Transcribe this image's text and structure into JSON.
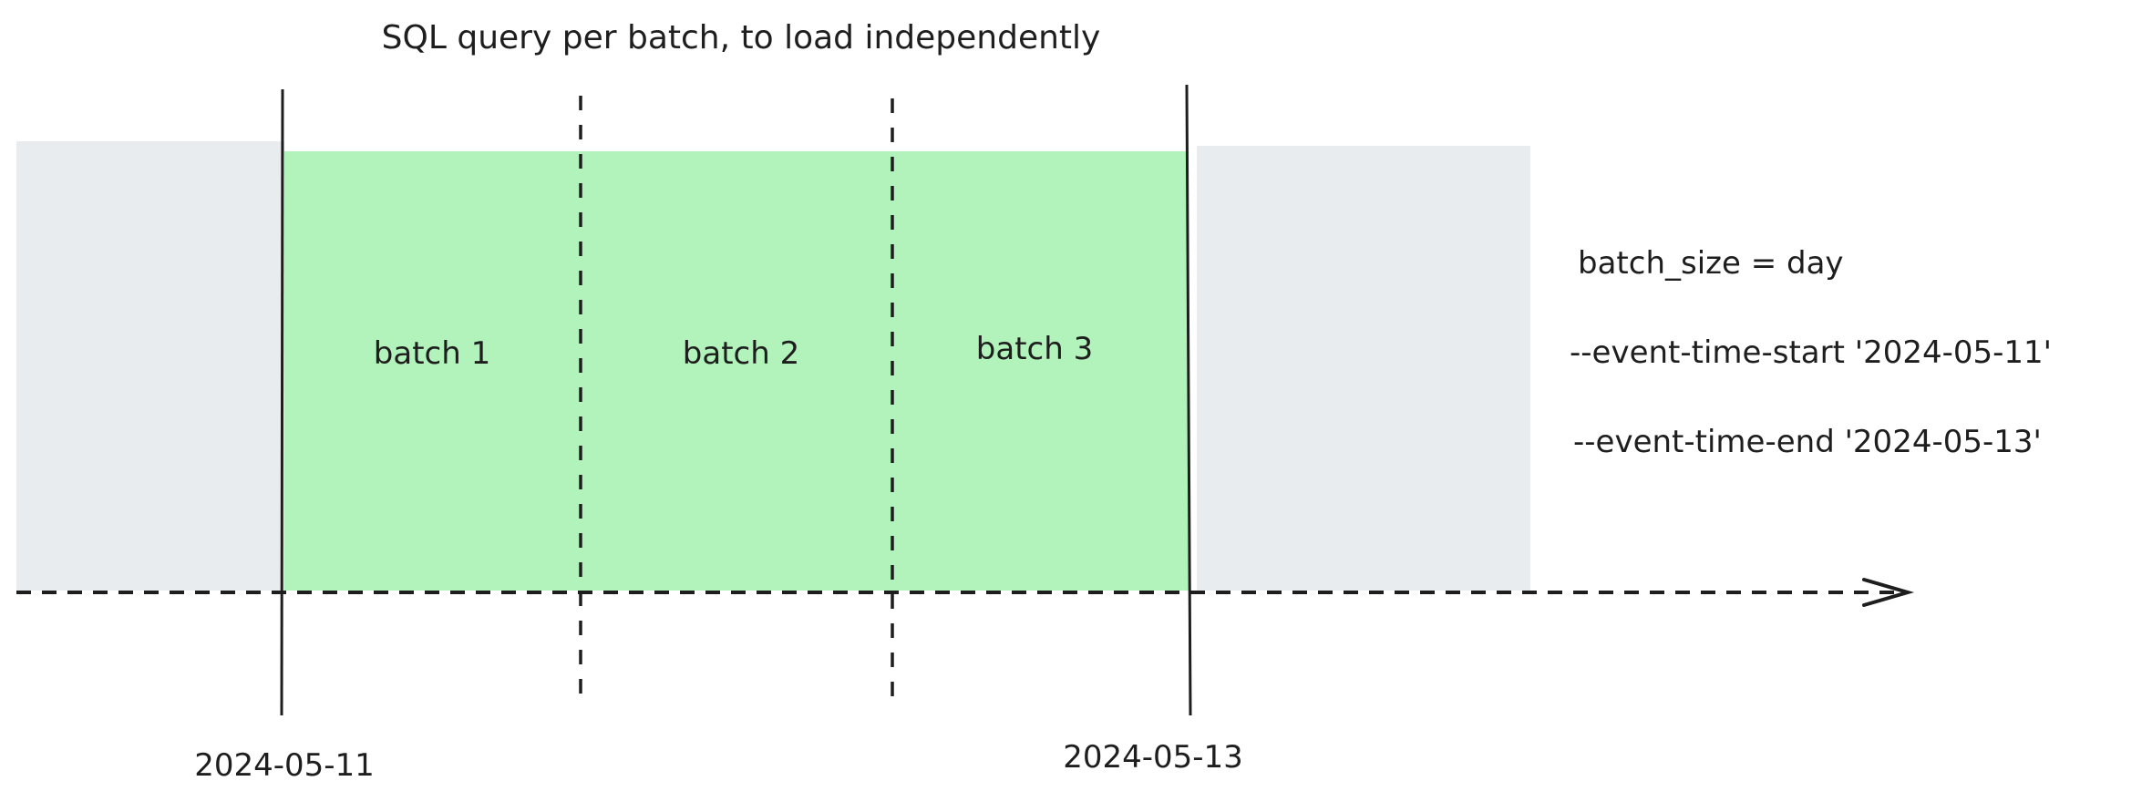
{
  "title": "SQL query per batch, to load independently",
  "batches": [
    "batch 1",
    "batch 2",
    "batch 3"
  ],
  "dates": {
    "start": "2024-05-11",
    "end": "2024-05-13"
  },
  "config": {
    "batch_size": "batch_size = day",
    "start": "--event-time-start '2024-05-11'",
    "end": "--event-time-end '2024-05-13'"
  },
  "colors": {
    "selected": "#b2f2bb",
    "unselected": "#e9ecef",
    "stroke": "#1e1e1e"
  }
}
